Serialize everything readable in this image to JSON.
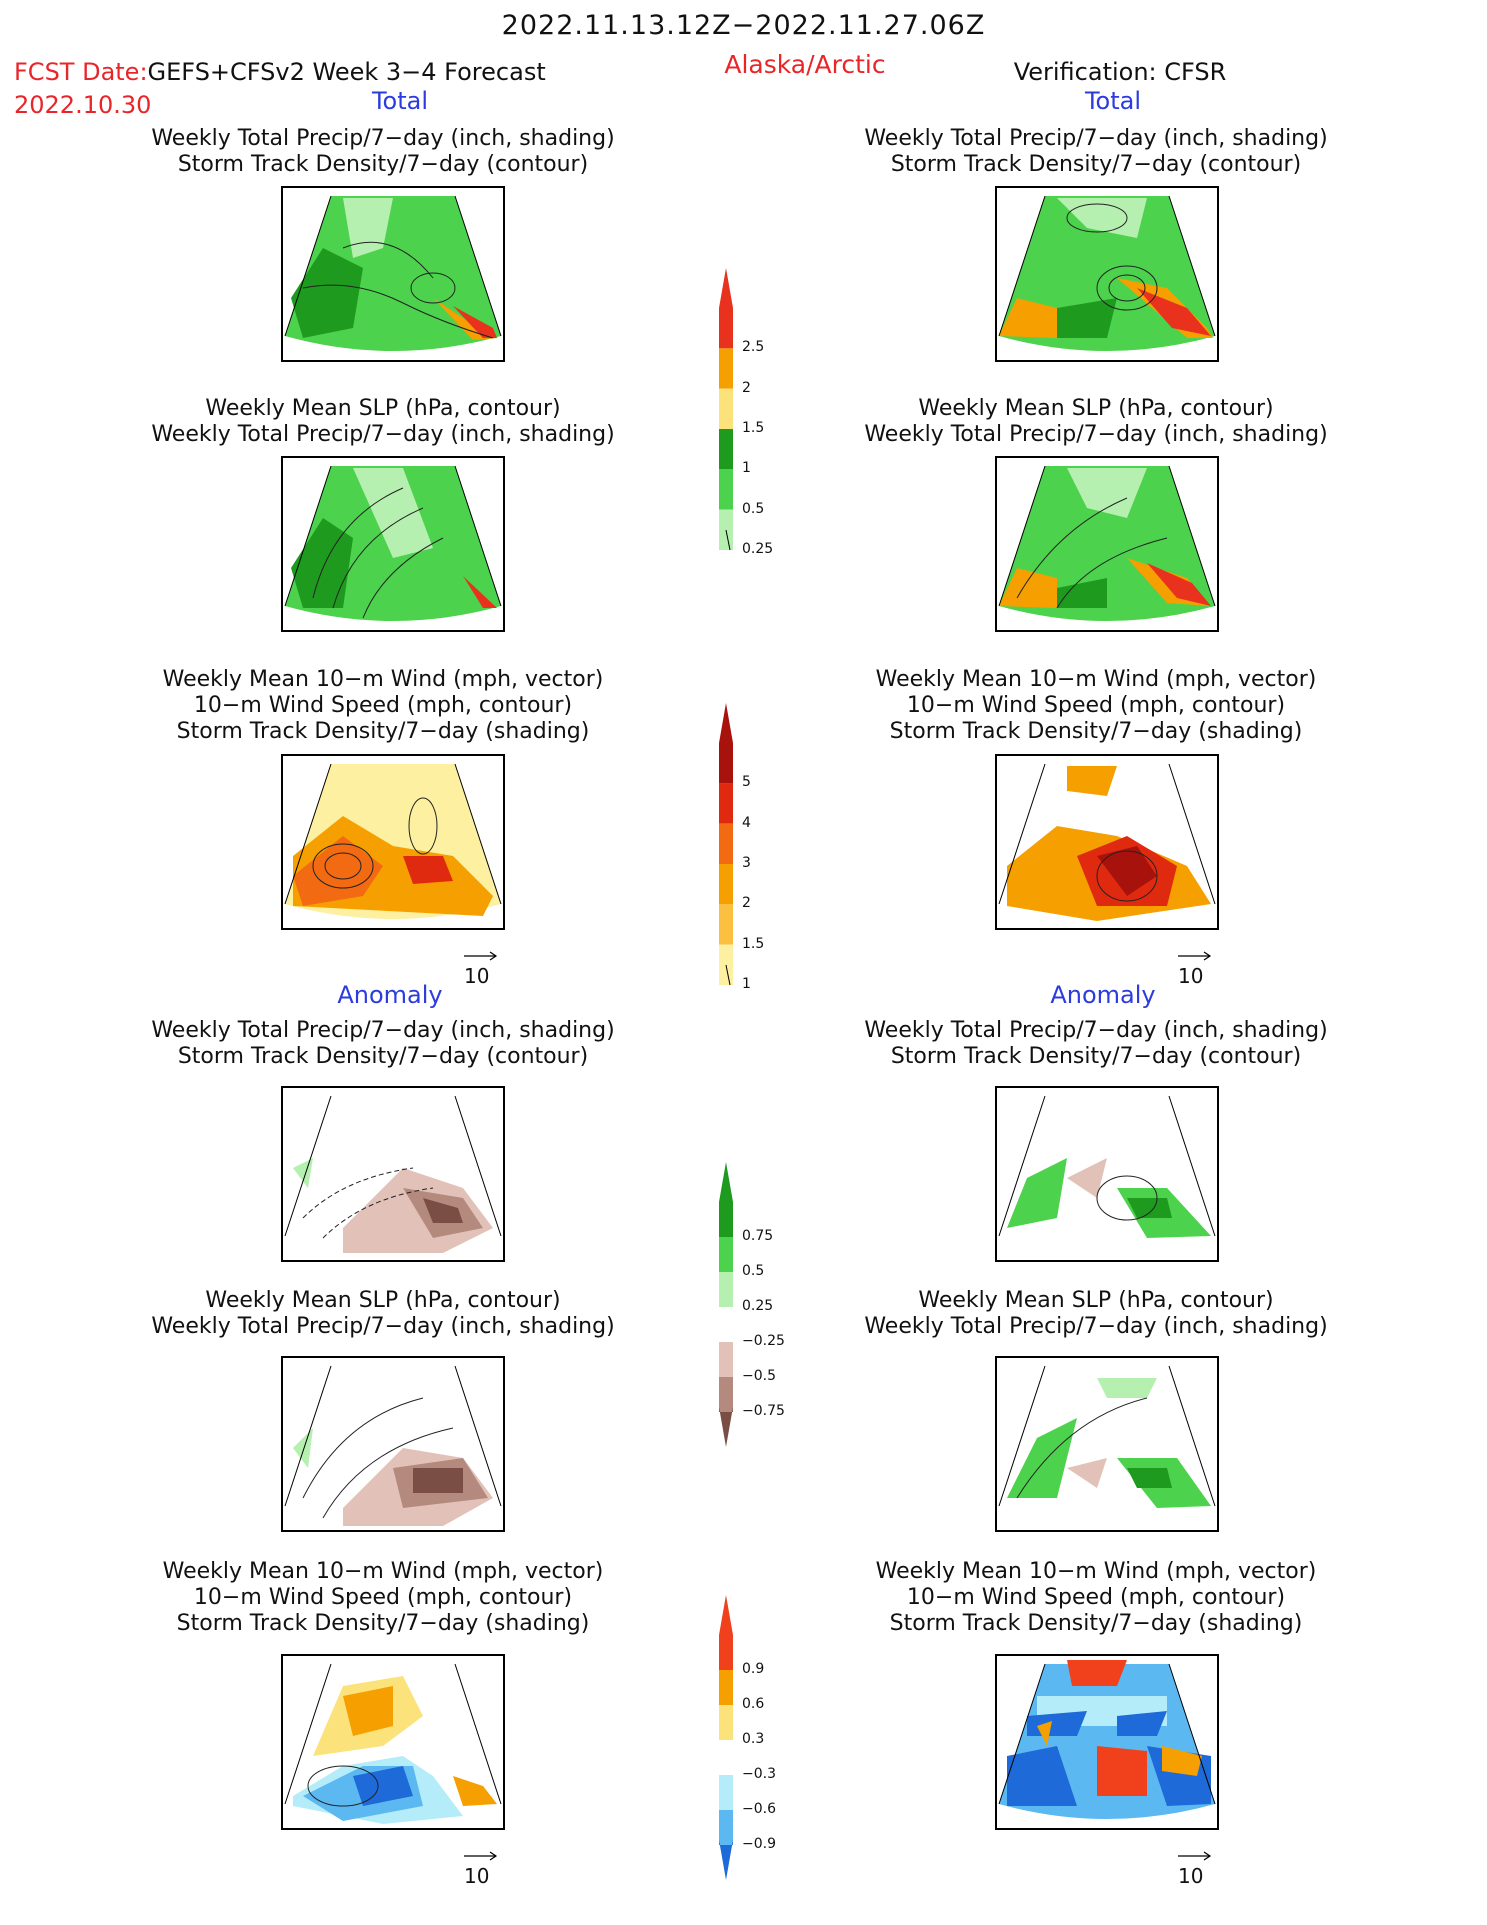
{
  "header": {
    "title": "2022.11.13.12Z−2022.11.27.06Z",
    "fcst_label": "FCST Date:",
    "fcst_model": "GEFS+CFSv2 Week 3−4 Forecast",
    "fcst_date": "2022.10.30",
    "region": "Alaska/Arctic",
    "verification": "Verification: CFSR"
  },
  "sections": {
    "total": "Total",
    "anomaly": "Anomaly"
  },
  "titles": {
    "precip_storm": [
      "Weekly Total Precip/7−day (inch, shading)",
      "Storm Track Density/7−day (contour)"
    ],
    "slp_precip": [
      "Weekly Mean SLP (hPa, contour)",
      "Weekly Total Precip/7−day (inch, shading)"
    ],
    "wind_storm": [
      "Weekly Mean 10−m Wind (mph, vector)",
      "10−m Wind Speed (mph, contour)",
      "Storm Track Density/7−day (shading)"
    ]
  },
  "vector_ref": "10",
  "colorbars": {
    "precip_total": {
      "ticks": [
        "2.5",
        "2",
        "1.5",
        "1",
        "0.5",
        "0.25"
      ],
      "colors": [
        "#e8321e",
        "#f5a000",
        "#fbe27a",
        "#1e9a1e",
        "#4cd24c",
        "#b5f0b0"
      ]
    },
    "storm_total": {
      "ticks": [
        "5",
        "4",
        "3",
        "2",
        "1.5",
        "1"
      ],
      "colors": [
        "#a8120c",
        "#e02a10",
        "#f26a12",
        "#f5a000",
        "#fbc040",
        "#fdf0a0"
      ]
    },
    "precip_anom": {
      "ticks": [
        "0.75",
        "0.5",
        "0.25",
        "−0.25",
        "−0.5",
        "−0.75"
      ],
      "colors": [
        "#1e9a1e",
        "#4cd24c",
        "#b5f0b0",
        "#ffffff",
        "#e2c2b8",
        "#b58a7e",
        "#7a4e44"
      ]
    },
    "storm_anom": {
      "ticks": [
        "0.9",
        "0.6",
        "0.3",
        "−0.3",
        "−0.6",
        "−0.9"
      ],
      "colors": [
        "#f0401c",
        "#f5a000",
        "#fbe27a",
        "#ffffff",
        "#b5ecfa",
        "#5cb8f0",
        "#1e6ad8"
      ]
    }
  }
}
